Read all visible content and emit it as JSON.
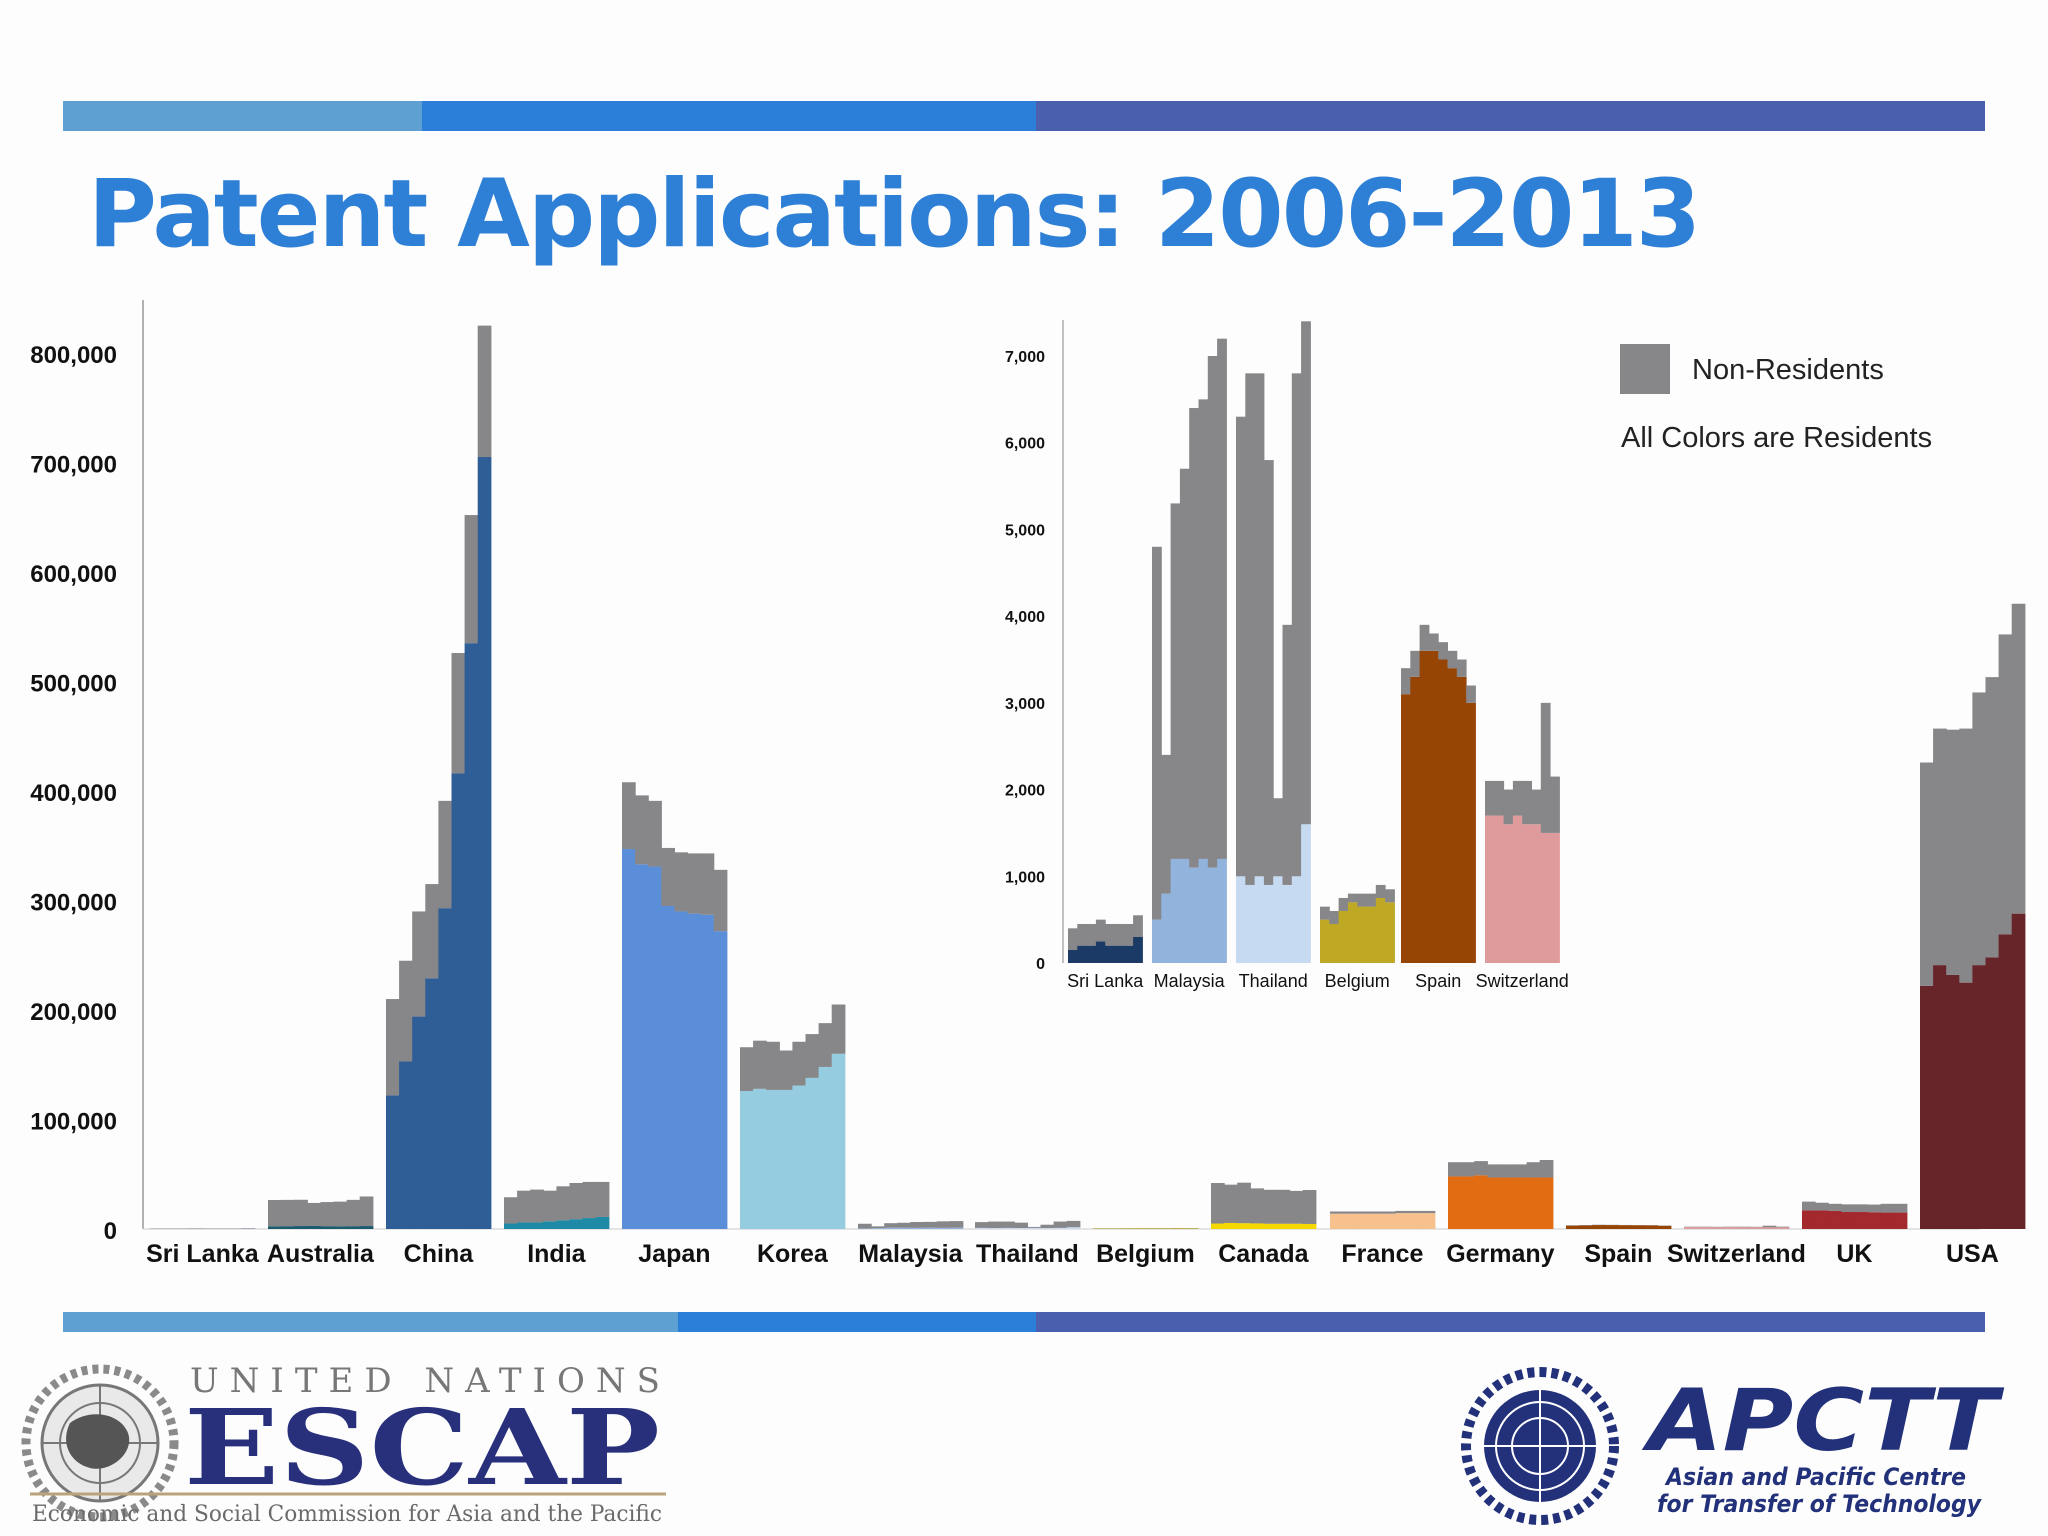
{
  "title": "Patent Applications: 2006-2013",
  "colors": {
    "nonresident": "#878689",
    "band_light": "#5fa0d2",
    "band_mid": "#2b7fd8",
    "band_dark": "#4a5fae",
    "title": "#2e7fd6"
  },
  "chart_data": [
    {
      "type": "bar",
      "stacked": true,
      "title": "",
      "xlabel": "",
      "ylabel": "",
      "ylim": [
        0,
        850000
      ],
      "yticks": [
        0,
        100000,
        200000,
        300000,
        400000,
        500000,
        600000,
        700000,
        800000
      ],
      "ytick_labels": [
        "0",
        "100,000",
        "200,000",
        "300,000",
        "400,000",
        "500,000",
        "600,000",
        "700,000",
        "800,000"
      ],
      "years": [
        "2006",
        "2007",
        "2008",
        "2009",
        "2010",
        "2011",
        "2012",
        "2013"
      ],
      "categories": [
        "Sri Lanka",
        "Australia",
        "China",
        "India",
        "Japan",
        "Korea",
        "Malaysia",
        "Thailand",
        "Belgium",
        "Canada",
        "France",
        "Germany",
        "Spain",
        "Switzerland",
        "UK",
        "USA"
      ],
      "series": [
        {
          "country": "Sri Lanka",
          "color": "#1b3a66",
          "residents": [
            150,
            200,
            200,
            250,
            200,
            200,
            200,
            300
          ],
          "non_residents": [
            250,
            250,
            250,
            250,
            250,
            250,
            250,
            250
          ]
        },
        {
          "country": "Australia",
          "color": "#1c5a6e",
          "residents": [
            2500,
            2600,
            2700,
            2800,
            2600,
            2500,
            2600,
            2700
          ],
          "non_residents": [
            24000,
            24000,
            24000,
            21000,
            22000,
            22500,
            24000,
            27000
          ]
        },
        {
          "country": "China",
          "color": "#2f5d96",
          "residents": [
            122000,
            153000,
            194000,
            229000,
            293000,
            416000,
            535000,
            705000
          ],
          "non_residents": [
            88000,
            92000,
            96000,
            86000,
            98000,
            110000,
            117000,
            120000
          ]
        },
        {
          "country": "India",
          "color": "#1f8aa6",
          "residents": [
            5000,
            6000,
            6000,
            7000,
            8000,
            9000,
            10000,
            11000
          ],
          "non_residents": [
            24000,
            29000,
            30000,
            28000,
            31000,
            33000,
            33000,
            32000
          ]
        },
        {
          "country": "Japan",
          "color": "#5a8ed8",
          "residents": [
            347000,
            333000,
            331000,
            295000,
            290000,
            288000,
            287000,
            272000
          ],
          "non_residents": [
            61000,
            63000,
            60000,
            53000,
            54000,
            55000,
            56000,
            56000
          ]
        },
        {
          "country": "Korea",
          "color": "#96cce0",
          "residents": [
            126000,
            128000,
            127000,
            127000,
            131000,
            138000,
            148000,
            160000
          ],
          "non_residents": [
            40000,
            44000,
            44000,
            36000,
            40000,
            40000,
            40000,
            45000
          ]
        },
        {
          "country": "Malaysia",
          "color": "#91b3dc",
          "residents": [
            500,
            800,
            1200,
            1200,
            1100,
            1200,
            1100,
            1200
          ],
          "non_residents": [
            4300,
            1600,
            4100,
            4500,
            5300,
            5300,
            5900,
            6000
          ]
        },
        {
          "country": "Thailand",
          "color": "#c6dbf1",
          "residents": [
            1000,
            900,
            1000,
            900,
            1000,
            900,
            1000,
            1600
          ],
          "non_residents": [
            5300,
            5900,
            5800,
            4900,
            900,
            3000,
            5800,
            5800
          ]
        },
        {
          "country": "Belgium",
          "color": "#bea824",
          "residents": [
            500,
            450,
            600,
            700,
            650,
            650,
            750,
            700
          ],
          "non_residents": [
            150,
            150,
            150,
            100,
            150,
            150,
            150,
            150
          ]
        },
        {
          "country": "Canada",
          "color": "#f4d800",
          "residents": [
            5000,
            5500,
            5300,
            5100,
            4800,
            4800,
            4800,
            4600
          ],
          "non_residents": [
            37000,
            35000,
            37000,
            32000,
            31000,
            31000,
            30000,
            31000
          ]
        },
        {
          "country": "France",
          "color": "#f6c18d",
          "residents": [
            14000,
            14000,
            14000,
            14000,
            14000,
            14500,
            14500,
            14500
          ],
          "non_residents": [
            2000,
            2000,
            2000,
            2000,
            2000,
            2000,
            2000,
            2000
          ]
        },
        {
          "country": "Germany",
          "color": "#e26c12",
          "residents": [
            48000,
            48000,
            49000,
            47000,
            47000,
            47000,
            47000,
            47000
          ],
          "non_residents": [
            13000,
            13000,
            13000,
            12000,
            12000,
            12000,
            14000,
            16000
          ]
        },
        {
          "country": "Spain",
          "color": "#974505",
          "residents": [
            3100,
            3300,
            3600,
            3600,
            3500,
            3400,
            3300,
            3000
          ],
          "non_residents": [
            300,
            300,
            300,
            200,
            200,
            200,
            200,
            200
          ]
        },
        {
          "country": "Switzerland",
          "color": "#df9b9c",
          "residents": [
            1700,
            1700,
            1600,
            1700,
            1600,
            1600,
            1500,
            1500
          ],
          "non_residents": [
            400,
            400,
            400,
            400,
            500,
            400,
            1500,
            650
          ]
        },
        {
          "country": "UK",
          "color": "#a3292e",
          "residents": [
            17000,
            17000,
            16500,
            15500,
            15500,
            15300,
            15000,
            15000
          ],
          "non_residents": [
            8000,
            7000,
            6500,
            7000,
            7000,
            7000,
            8000,
            8000
          ]
        },
        {
          "country": "USA",
          "color": "#67252a",
          "residents": [
            222000,
            241000,
            232000,
            225000,
            241000,
            248000,
            269000,
            288000
          ],
          "non_residents": [
            204000,
            216000,
            224000,
            232000,
            249000,
            256000,
            274000,
            283000
          ]
        }
      ]
    },
    {
      "type": "bar",
      "stacked": true,
      "title": "",
      "ylim": [
        0,
        7400
      ],
      "yticks": [
        0,
        1000,
        2000,
        3000,
        4000,
        5000,
        6000,
        7000
      ],
      "ytick_labels": [
        "0",
        "1,000",
        "2,000",
        "3,000",
        "4,000",
        "5,000",
        "6,000",
        "7,000"
      ],
      "categories": [
        "Sri Lanka",
        "Malaysia",
        "Thailand",
        "Belgium",
        "Spain",
        "Switzerland"
      ],
      "legend": {
        "placement": "top-right",
        "swatch_label": "Non-Residents",
        "note": "All Colors are Residents"
      }
    }
  ],
  "logos": {
    "escap": {
      "top": "UNITED NATIONS",
      "main": "ESCAP",
      "sub": "Economic and Social Commission for Asia and the Pacific"
    },
    "apctt": {
      "main": "APCTT",
      "sub1": "Asian and Pacific Centre",
      "sub2": "for Transfer of Technology"
    }
  }
}
